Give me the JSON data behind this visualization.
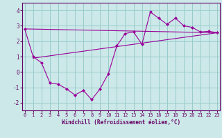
{
  "xlabel": "Windchill (Refroidissement éolien,°C)",
  "background_color": "#cce8e8",
  "grid_color": "#99cccc",
  "line_color": "#990099",
  "spine_color": "#660066",
  "x_data": [
    0,
    1,
    2,
    3,
    4,
    5,
    6,
    7,
    8,
    9,
    10,
    11,
    12,
    13,
    14,
    15,
    16,
    17,
    18,
    19,
    20,
    21,
    22,
    23
  ],
  "y_data": [
    2.8,
    1.0,
    0.6,
    -0.7,
    -0.8,
    -1.1,
    -1.5,
    -1.2,
    -1.8,
    -1.1,
    -0.1,
    1.7,
    2.5,
    2.6,
    1.8,
    3.9,
    3.5,
    3.1,
    3.5,
    3.0,
    2.9,
    2.6,
    2.65,
    2.55
  ],
  "trend1_x": [
    1,
    23
  ],
  "trend1_y": [
    0.9,
    2.55
  ],
  "trend2_x": [
    0,
    23
  ],
  "trend2_y": [
    2.8,
    2.55
  ],
  "ylim": [
    -2.5,
    4.5
  ],
  "xlim": [
    -0.3,
    23.3
  ],
  "yticks": [
    -2,
    -1,
    0,
    1,
    2,
    3,
    4
  ],
  "xticks": [
    0,
    1,
    2,
    3,
    4,
    5,
    6,
    7,
    8,
    9,
    10,
    11,
    12,
    13,
    14,
    15,
    16,
    17,
    18,
    19,
    20,
    21,
    22,
    23
  ],
  "tick_fontsize": 5.0,
  "xlabel_fontsize": 5.5
}
